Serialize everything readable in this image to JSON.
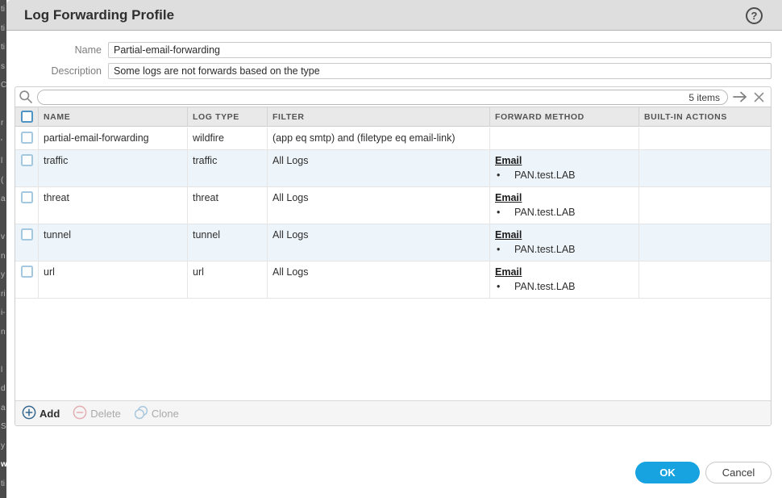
{
  "background": {
    "fragments": [
      "ti",
      "ti",
      "ti",
      "s",
      "C",
      "",
      "r",
      "'",
      "l",
      "(",
      "a",
      "",
      "v",
      "n",
      "y",
      "ri",
      "i-",
      "n",
      "",
      "l",
      "d",
      "a",
      "S",
      "y",
      "w",
      "ti"
    ]
  },
  "dialog": {
    "title": "Log Forwarding Profile",
    "help_glyph": "?"
  },
  "form": {
    "name_label": "Name",
    "name_value": "Partial-email-forwarding",
    "description_label": "Description",
    "description_value": "Some logs are not forwards based on the type"
  },
  "search": {
    "items_count": "5 items",
    "value": ""
  },
  "table": {
    "columns": [
      "NAME",
      "LOG TYPE",
      "FILTER",
      "FORWARD METHOD",
      "BUILT-IN ACTIONS"
    ],
    "rows": [
      {
        "name": "partial-email-forwarding",
        "log_type": "wildfire",
        "filter": "(app eq smtp) and (filetype eq email-link)",
        "forward_method": "",
        "forward_items": [],
        "built_in_actions": ""
      },
      {
        "name": "traffic",
        "log_type": "traffic",
        "filter": "All Logs",
        "forward_method": "Email",
        "forward_items": [
          "PAN.test.LAB"
        ],
        "built_in_actions": ""
      },
      {
        "name": "threat",
        "log_type": "threat",
        "filter": "All Logs",
        "forward_method": "Email",
        "forward_items": [
          "PAN.test.LAB"
        ],
        "built_in_actions": ""
      },
      {
        "name": "tunnel",
        "log_type": "tunnel",
        "filter": "All Logs",
        "forward_method": "Email",
        "forward_items": [
          "PAN.test.LAB"
        ],
        "built_in_actions": ""
      },
      {
        "name": "url",
        "log_type": "url",
        "filter": "All Logs",
        "forward_method": "Email",
        "forward_items": [
          "PAN.test.LAB"
        ],
        "built_in_actions": ""
      }
    ],
    "bullet_glyph": "•"
  },
  "toolbar": {
    "add_label": "Add",
    "delete_label": "Delete",
    "clone_label": "Clone"
  },
  "footer": {
    "ok_label": "OK",
    "cancel_label": "Cancel"
  },
  "colors": {
    "accent_blue": "#17a2e0",
    "row_alt_blue": "#eef5fa",
    "checkbox_blue": "#4e93c6",
    "titlebar_gray": "#dedede",
    "delete_icon_pink": "#e3aeb2",
    "clone_icon_blue": "#a9c7dd"
  }
}
